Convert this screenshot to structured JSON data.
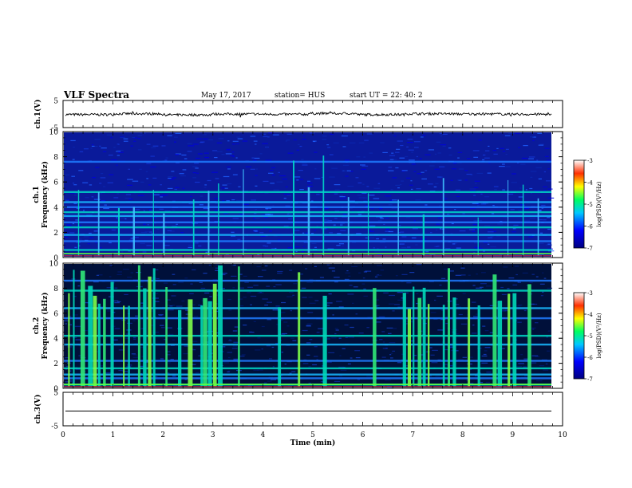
{
  "header": {
    "title": "VLF Spectra",
    "date": "May 17, 2017",
    "station": "station= HUS",
    "start": "start  UT  =   22: 40: 2"
  },
  "chart_data": [
    {
      "type": "line",
      "panel": "ch1-waveform",
      "ylabel": "ch.1(V)",
      "ylim": [
        -5,
        5
      ],
      "yticks": [
        5,
        -5
      ],
      "series": [
        {
          "values": [
            -0.2,
            0.1,
            -0.3,
            0.0,
            -0.1,
            0.2,
            -0.2,
            0.1,
            0.0,
            -0.1
          ]
        }
      ]
    },
    {
      "type": "heatmap",
      "panel": "ch1-spectrogram",
      "ylabel": "Frequency (kHz)",
      "channel_label": "ch.1",
      "ylim": [
        0,
        10
      ],
      "yticks": [
        0,
        2,
        4,
        6,
        8,
        10
      ],
      "colorbar": {
        "label": "log(PSD)(V²/Hz)",
        "ticks": [
          -3,
          -4,
          -5,
          -6,
          -7
        ],
        "range": [
          -7,
          -3
        ]
      },
      "bands_khz": [
        0.6,
        1.3,
        1.8,
        2.4,
        2.8,
        3.3,
        3.6,
        4.0,
        4.4,
        5.2,
        7.6
      ],
      "bursts_min": [
        0.3,
        0.7,
        1.1,
        1.4,
        1.8,
        2.0,
        2.6,
        2.9,
        3.1,
        3.6,
        4.6,
        4.9,
        5.2,
        5.7,
        6.1,
        6.7,
        7.2,
        7.6,
        8.3,
        8.9,
        9.2,
        9.5
      ]
    },
    {
      "type": "heatmap",
      "panel": "ch2-spectrogram",
      "ylabel": "Frequency (kHz)",
      "channel_label": "ch.2",
      "ylim": [
        0,
        10
      ],
      "yticks": [
        0,
        2,
        4,
        6,
        8,
        10
      ],
      "colorbar": {
        "label": "log(PSD)(V²/Hz)",
        "ticks": [
          -3,
          -4,
          -5,
          -6,
          -7
        ],
        "range": [
          -7,
          -3
        ]
      },
      "bands_khz": [
        0.3,
        0.8,
        1.1,
        1.6,
        2.2,
        3.5,
        4.2,
        5.6,
        6.4,
        7.8,
        8.6
      ],
      "bursts_min": [
        0.1,
        0.2,
        0.35,
        0.5,
        0.6,
        0.7,
        0.8,
        0.95,
        1.2,
        1.3,
        1.5,
        1.6,
        1.7,
        1.8,
        2.05,
        2.3,
        2.5,
        2.75,
        2.8,
        2.9,
        3.0,
        3.1,
        3.5,
        4.3,
        4.7,
        5.2,
        6.2,
        6.8,
        6.9,
        7.0,
        7.1,
        7.2,
        7.3,
        7.6,
        7.7,
        7.8,
        8.1,
        8.3,
        8.6,
        8.7,
        8.9,
        9.0,
        9.3
      ]
    },
    {
      "type": "line",
      "panel": "ch3-waveform",
      "ylabel": "ch.3(V)",
      "ylim": [
        -5,
        5
      ],
      "yticks": [
        5,
        -5
      ],
      "series": [
        {
          "values": [
            -0.6,
            -0.6
          ]
        }
      ]
    }
  ],
  "xaxis": {
    "label": "Time  (min)",
    "xlim": [
      0,
      10
    ],
    "ticks": [
      0,
      1,
      2,
      3,
      4,
      5,
      6,
      7,
      8,
      9,
      10
    ]
  },
  "colors": {
    "background": "#ffffff",
    "spectrogram_low": "#000060",
    "spectrogram_mid": "#1e7bff",
    "spectrogram_high": "#00e0c0"
  }
}
